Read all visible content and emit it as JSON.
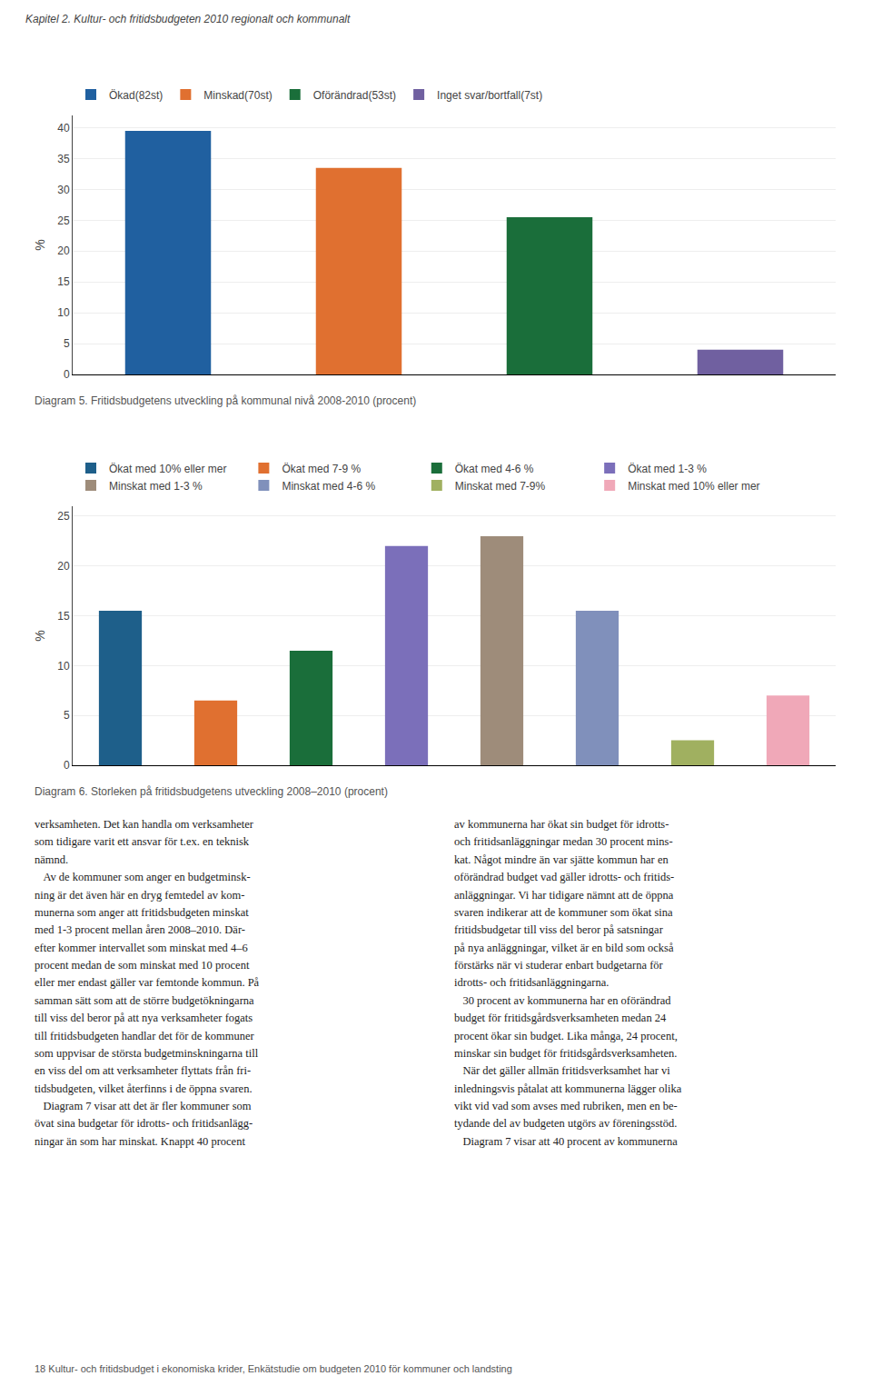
{
  "title": "Kapitel 2. Kultur- och fritidsbudgeten 2010 regionalt och kommunalt",
  "chart_data": [
    {
      "type": "bar",
      "title": "Diagram 5. Fritidsbudgetens utveckling på kommunal nivå 2008-2010 (procent)",
      "ylabel": "%",
      "categories": [
        "Ökad(82st)",
        "Minskad(70st)",
        "Oförändrad(53st)",
        "Inget svar/bortfall(7st)"
      ],
      "values": [
        39.5,
        33.5,
        25.5,
        4.0
      ],
      "colors": [
        "#2060a0",
        "#e07030",
        "#1a6e3a",
        "#7060a0"
      ],
      "ylim": [
        0,
        42
      ],
      "yticks": [
        0,
        5,
        10,
        15,
        20,
        25,
        30,
        35,
        40
      ],
      "grid": true,
      "legend": "upper left",
      "tick_labels": "y"
    },
    {
      "type": "bar",
      "title": "Diagram 6. Storleken på fritidsbudgetens utveckling 2008–2010 (procent)",
      "ylabel": "%",
      "categories": [
        "Ökat med 10% eller mer",
        "Ökat med 7-9 %",
        "Ökat med 4-6 %",
        "Ökat med 1-3 %",
        "Minskat med 1-3 %",
        "Minskat med 4-6 %",
        "Minskat med 7-9%",
        "Minskat med 10% eller mer"
      ],
      "values": [
        15.5,
        6.5,
        11.5,
        22.0,
        23.0,
        15.5,
        2.5,
        7.0
      ],
      "colors": [
        "#1e5f8a",
        "#e07030",
        "#1a6e3a",
        "#7b6fba",
        "#9e8c7a",
        "#8090bb",
        "#a0b060",
        "#f0a8b8"
      ],
      "ylim": [
        0,
        26
      ],
      "yticks": [
        0,
        5,
        10,
        15,
        20,
        25
      ],
      "grid": true,
      "legend": "upper left",
      "tick_labels": "y"
    }
  ],
  "annotations": [
    "verksamheten. Det kan handla om verksamheter\nsom tidigare varit ett ansvar för t.ex. en teknisk\nnämnd.\n   Av de kommuner som anger en budgetminsk-\nning är det även här en dryg femtedel av kom-\nmunerna som anger att fritidsbudgeten minskat\nmed 1-3 procent mellan åren 2008–2010. Där-\nefter kommer intervallet som minskat med 4–6\nprocent medan de som minskat med 10 procent\neller mer endast gäller var femtonde kommun. På\nsamman sätt som att de större budgetökningarna\ntill viss del beror på att nya verksamheter fogats\ntill fritidsbudgeten handlar det för de kommuner\nsom uppvisar de största budgetminskningarna till\nen viss del om att verksamheter flyttats från fri-\ntidsbudgeten, vilket återfinns i de öppna svaren.\n   Diagram 7 visar att det är fler kommuner som\növat sina budgetar för idrotts- och fritidsanlägg-\nningar än som har minskat. Knappt 40 procent",
    "av kommunerna har ökat sin budget för idrotts-\noch fritidsanläggningar medan 30 procent mins-\nkat. Något mindre än var sjätte kommun har en\noförändrad budget vad gäller idrotts- och fritids-\nanläggningar. Vi har tidigare nämnt att de öppna\nsvaren indikerar att de kommuner som ökat sina\nfritidsbudgetar till viss del beror på satsningar\npå nya anläggningar, vilket är en bild som också\nförstärks när vi studerar enbart budgetarna för\nidrotts- och fritidsanläggningarna.\n   30 procent av kommunerna har en oförändrad\nbudget för fritidsgårdsverksamheten medan 24\nprocent ökar sin budget. Lika många, 24 procent,\nminskar sin budget för fritidsgårdsverksamheten.\n   När det gäller allmän fritidsverksamhet har vi\ninledningsvis påtalat att kommunerna lägger olika\nvikt vid vad som avses med rubriken, men en be-\ntydande del av budgeten utgörs av föreningsstöd.\n   Diagram 7 visar att 40 procent av kommunerna",
    "18    Kultur- och fritidsbudget i ekonomiska krider, Enkätstudie om budgeten 2010 för kommuner och landsting"
  ]
}
